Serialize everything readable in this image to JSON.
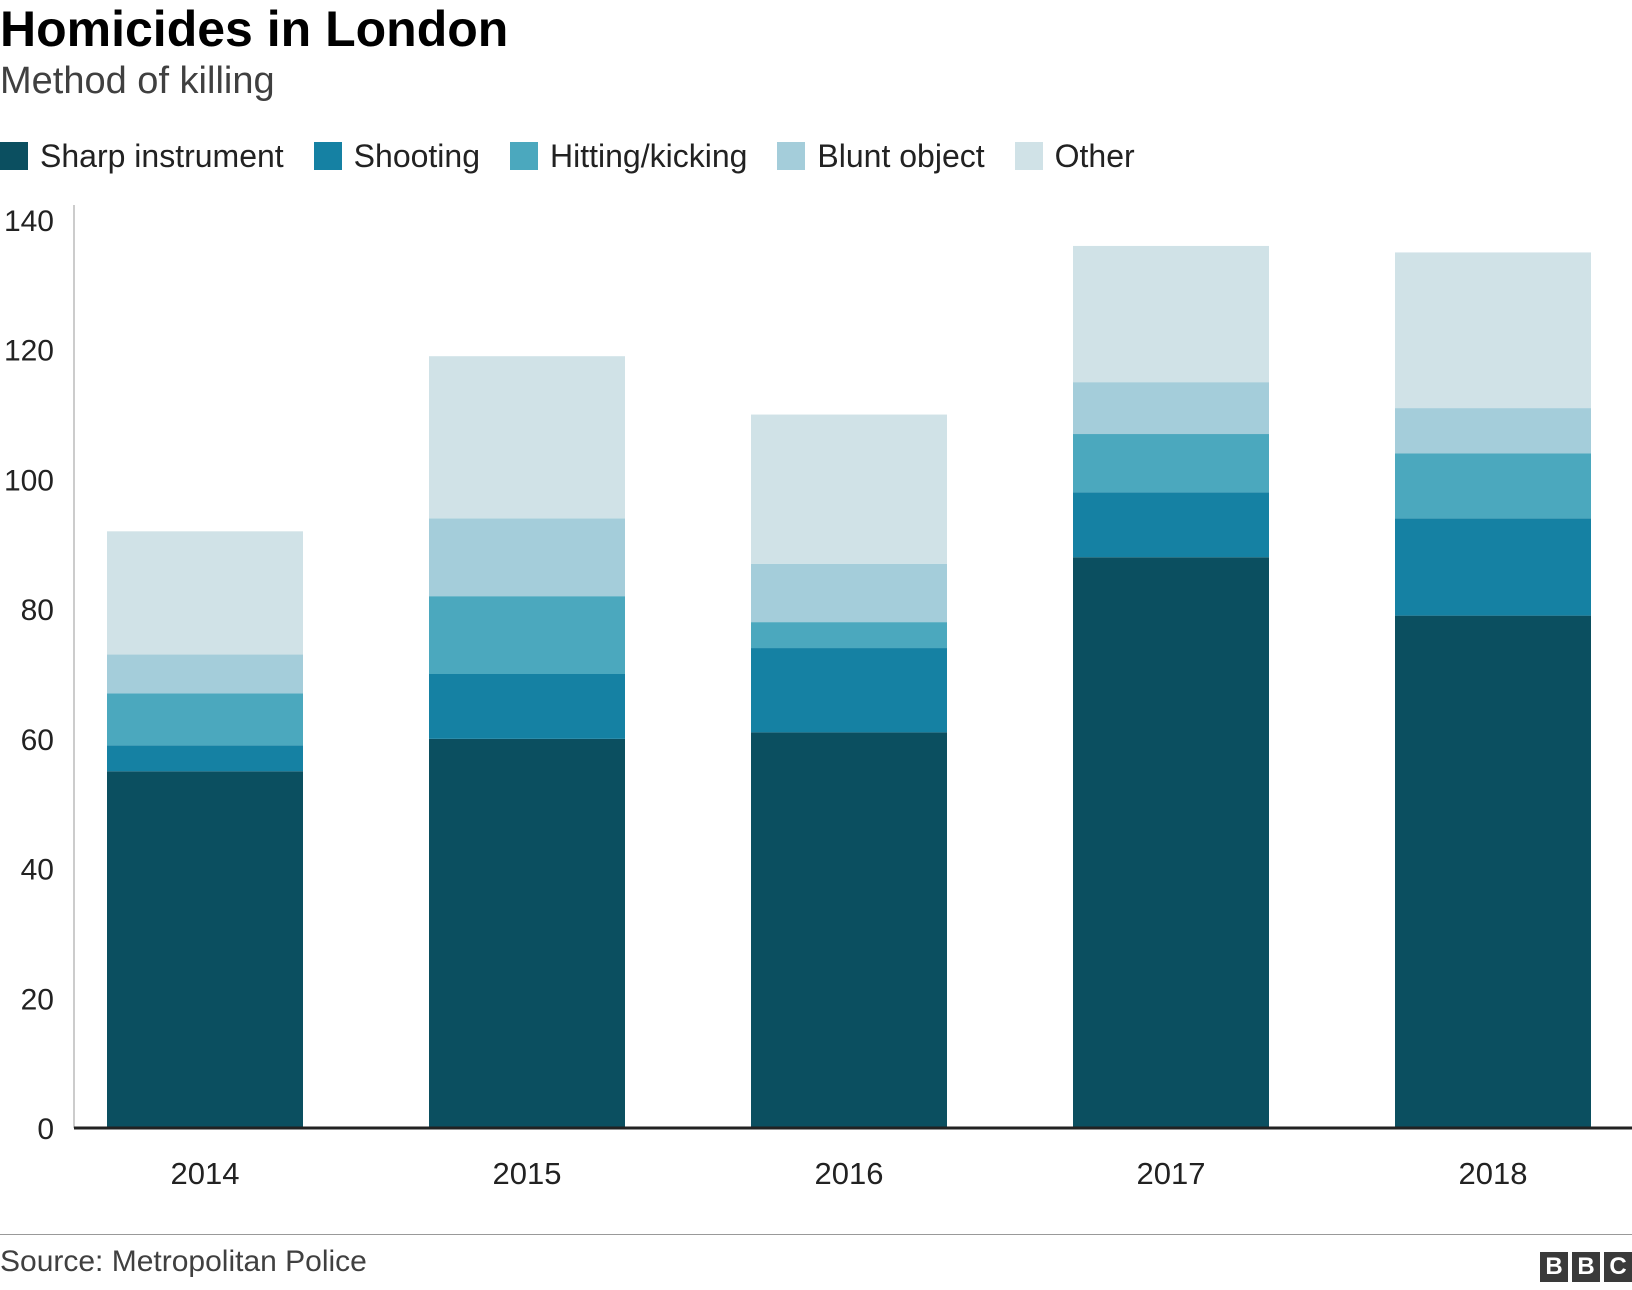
{
  "header": {
    "title": "Homicides in London",
    "subtitle": "Method of killing"
  },
  "footer": {
    "source": "Source: Metropolitan Police",
    "logo": [
      "B",
      "B",
      "C"
    ]
  },
  "chart_data": {
    "type": "bar",
    "stacked": true,
    "title": "Homicides in London",
    "subtitle": "Method of killing",
    "xlabel": "",
    "ylabel": "",
    "ylim": [
      0,
      140
    ],
    "yticks": [
      0,
      20,
      40,
      60,
      80,
      100,
      120,
      140
    ],
    "grid": false,
    "legend_position": "top-left",
    "categories": [
      "2014",
      "2015",
      "2016",
      "2017",
      "2018"
    ],
    "series": [
      {
        "name": "Sharp instrument",
        "color": "#0b4f60",
        "values": [
          55,
          60,
          61,
          88,
          79
        ]
      },
      {
        "name": "Shooting",
        "color": "#1581a3",
        "values": [
          4,
          10,
          13,
          10,
          15
        ]
      },
      {
        "name": "Hitting/kicking",
        "color": "#4ba8be",
        "values": [
          8,
          12,
          4,
          9,
          10
        ]
      },
      {
        "name": "Blunt object",
        "color": "#a4cdda",
        "values": [
          6,
          12,
          9,
          8,
          7
        ]
      },
      {
        "name": "Other",
        "color": "#d0e2e7",
        "values": [
          19,
          25,
          23,
          21,
          24
        ]
      }
    ]
  }
}
